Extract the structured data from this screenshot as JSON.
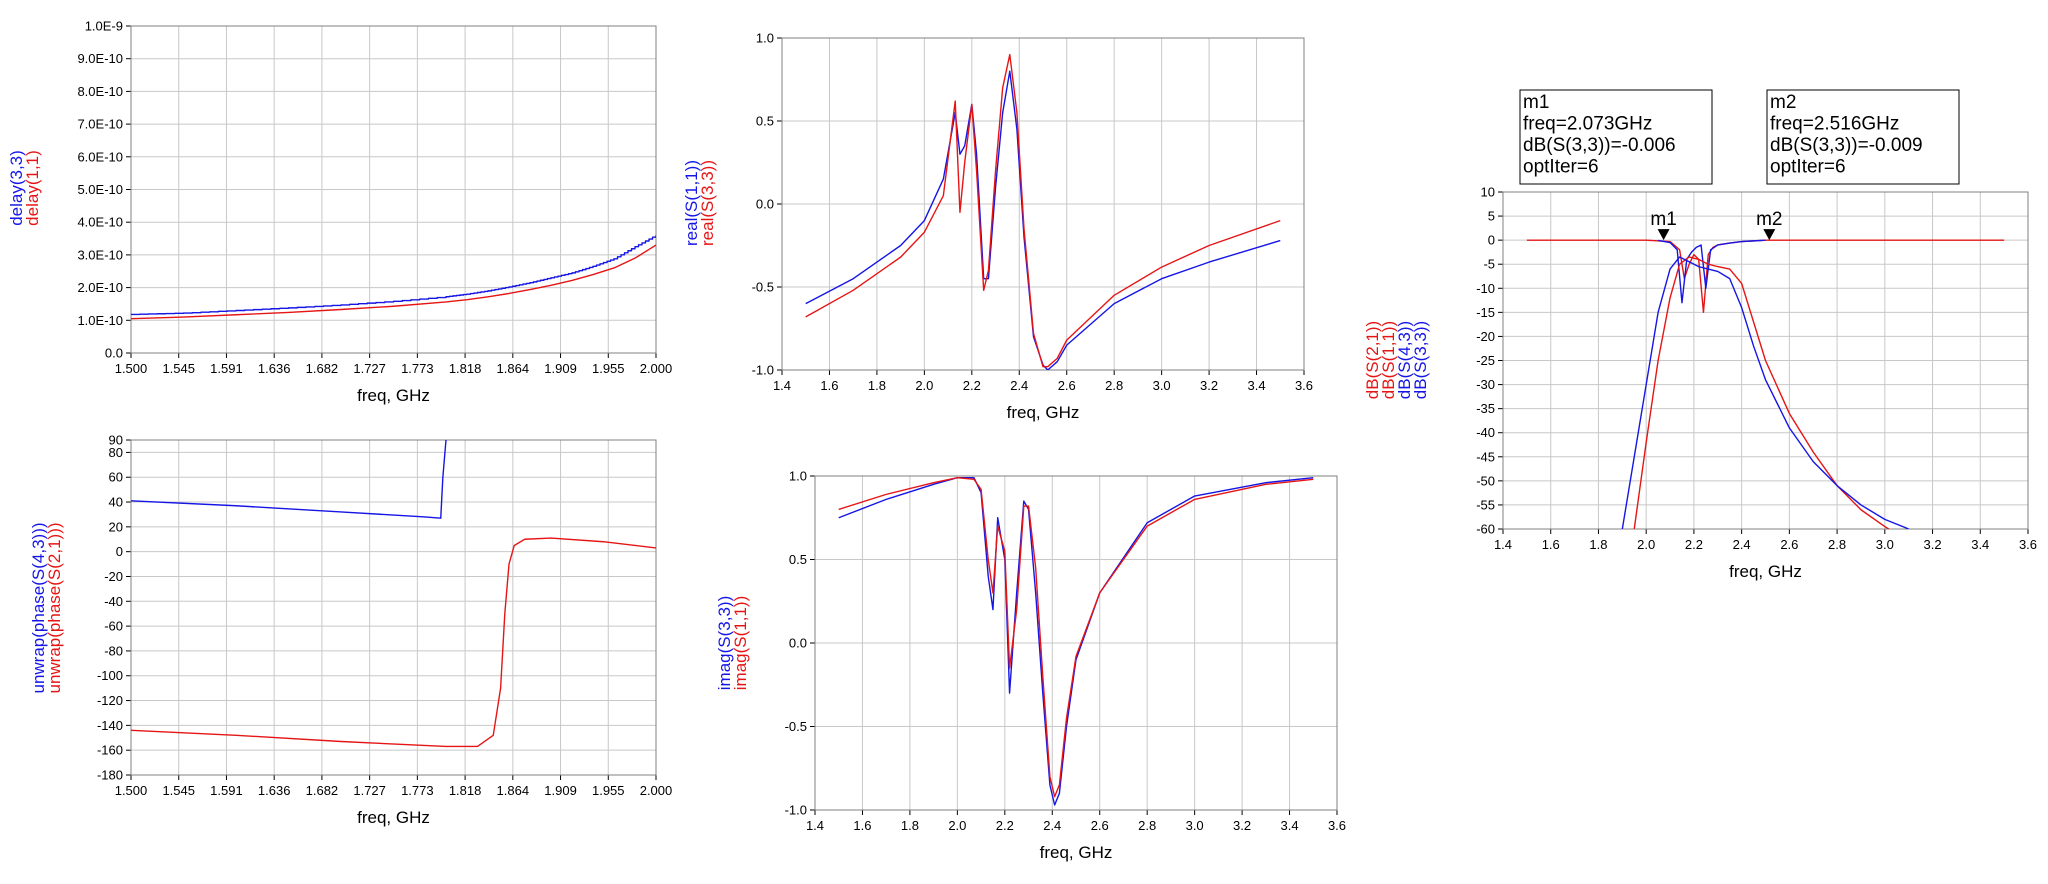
{
  "colors": {
    "blue": "#1515e6",
    "red": "#e61515",
    "grid": "#c8c8c8",
    "frame": "#808080"
  },
  "chart_data": [
    {
      "id": "delay",
      "type": "line",
      "x_label": "freq, GHz",
      "y_labels": [
        {
          "text": "delay(3,3)",
          "color": "blue"
        },
        {
          "text": "delay(1,1)",
          "color": "red"
        }
      ],
      "xlim": [
        1.5,
        2.0
      ],
      "ylim": [
        0,
        1e-09
      ],
      "x_ticks": [
        "1.500",
        "1.545",
        "1.591",
        "1.636",
        "1.682",
        "1.727",
        "1.773",
        "1.818",
        "1.864",
        "1.909",
        "1.955",
        "2.000"
      ],
      "y_ticks": [
        "0.0",
        "1.0E-10",
        "2.0E-10",
        "3.0E-10",
        "4.0E-10",
        "5.0E-10",
        "6.0E-10",
        "7.0E-10",
        "8.0E-10",
        "9.0E-10",
        "1.0E-9"
      ],
      "series": [
        {
          "name": "delay(3,3)",
          "color": "blue",
          "step": true,
          "x": [
            1.5,
            1.55,
            1.6,
            1.65,
            1.7,
            1.75,
            1.8,
            1.82,
            1.84,
            1.86,
            1.88,
            1.9,
            1.92,
            1.94,
            1.96,
            1.98,
            2.0
          ],
          "y": [
            1.18e-10,
            1.22e-10,
            1.3e-10,
            1.38e-10,
            1.47e-10,
            1.58e-10,
            1.72e-10,
            1.8e-10,
            1.9e-10,
            2.02e-10,
            2.15e-10,
            2.3e-10,
            2.45e-10,
            2.65e-10,
            2.88e-10,
            3.25e-10,
            3.6e-10
          ]
        },
        {
          "name": "delay(1,1)",
          "color": "red",
          "x": [
            1.5,
            1.55,
            1.6,
            1.65,
            1.7,
            1.75,
            1.8,
            1.82,
            1.84,
            1.86,
            1.88,
            1.9,
            1.92,
            1.94,
            1.96,
            1.98,
            2.0
          ],
          "y": [
            1.05e-10,
            1.1e-10,
            1.17e-10,
            1.24e-10,
            1.33e-10,
            1.43e-10,
            1.56e-10,
            1.63e-10,
            1.72e-10,
            1.82e-10,
            1.94e-10,
            2.07e-10,
            2.22e-10,
            2.4e-10,
            2.6e-10,
            2.9e-10,
            3.3e-10
          ]
        }
      ]
    },
    {
      "id": "phase",
      "type": "line",
      "x_label": "freq, GHz",
      "y_labels": [
        {
          "text": "unwrap(phase(S(4,3)))",
          "color": "blue"
        },
        {
          "text": "unwrap(phase(S(2,1)))",
          "color": "red"
        }
      ],
      "xlim": [
        1.5,
        2.0
      ],
      "ylim": [
        -180,
        90
      ],
      "x_ticks": [
        "1.500",
        "1.545",
        "1.591",
        "1.636",
        "1.682",
        "1.727",
        "1.773",
        "1.818",
        "1.864",
        "1.909",
        "1.955",
        "2.000"
      ],
      "y_ticks": [
        "-180",
        "-160",
        "-140",
        "-120",
        "-100",
        "-80",
        "-60",
        "-40",
        "-20",
        "0",
        "20",
        "40",
        "60",
        "80",
        "90"
      ],
      "series": [
        {
          "name": "unwrap(phase(S(4,3)))",
          "color": "blue",
          "x": [
            1.5,
            1.6,
            1.7,
            1.78,
            1.795,
            1.797,
            1.8
          ],
          "y": [
            41,
            37,
            32,
            28,
            27,
            60,
            90
          ]
        },
        {
          "name": "unwrap(phase(S(2,1)))",
          "color": "red",
          "x": [
            1.5,
            1.6,
            1.7,
            1.8,
            1.83,
            1.845,
            1.852,
            1.856,
            1.86,
            1.865,
            1.875,
            1.9,
            1.95,
            2.0
          ],
          "y": [
            -144,
            -148,
            -153,
            -157,
            -157,
            -148,
            -110,
            -50,
            -10,
            5,
            10,
            11,
            8,
            3
          ]
        }
      ]
    },
    {
      "id": "real",
      "type": "line",
      "x_label": "freq, GHz",
      "y_labels": [
        {
          "text": "real(S(1,1))",
          "color": "blue"
        },
        {
          "text": "real(S(3,3))",
          "color": "red"
        }
      ],
      "xlim": [
        1.4,
        3.6
      ],
      "ylim": [
        -1.0,
        1.0
      ],
      "x_ticks": [
        "1.4",
        "1.6",
        "1.8",
        "2.0",
        "2.2",
        "2.4",
        "2.6",
        "2.8",
        "3.0",
        "3.2",
        "3.4",
        "3.6"
      ],
      "y_ticks": [
        "-1.0",
        "-0.5",
        "0.0",
        "0.5",
        "1.0"
      ],
      "series": [
        {
          "name": "real(S(1,1))",
          "color": "blue",
          "x": [
            1.5,
            1.7,
            1.9,
            2.0,
            2.08,
            2.13,
            2.15,
            2.17,
            2.2,
            2.22,
            2.25,
            2.27,
            2.3,
            2.33,
            2.36,
            2.39,
            2.42,
            2.46,
            2.5,
            2.52,
            2.56,
            2.6,
            2.8,
            3.0,
            3.2,
            3.5
          ],
          "y": [
            -0.6,
            -0.45,
            -0.25,
            -0.1,
            0.15,
            0.55,
            0.3,
            0.35,
            0.6,
            0.3,
            -0.45,
            -0.45,
            0.1,
            0.55,
            0.8,
            0.45,
            -0.2,
            -0.8,
            -0.97,
            -1.0,
            -0.95,
            -0.85,
            -0.6,
            -0.45,
            -0.35,
            -0.22
          ]
        },
        {
          "name": "real(S(3,3))",
          "color": "red",
          "x": [
            1.5,
            1.7,
            1.9,
            2.0,
            2.08,
            2.13,
            2.15,
            2.17,
            2.2,
            2.22,
            2.25,
            2.27,
            2.3,
            2.33,
            2.36,
            2.39,
            2.42,
            2.46,
            2.5,
            2.52,
            2.56,
            2.6,
            2.8,
            3.0,
            3.2,
            3.5
          ],
          "y": [
            -0.68,
            -0.52,
            -0.32,
            -0.17,
            0.05,
            0.62,
            -0.05,
            0.25,
            0.6,
            0.2,
            -0.52,
            -0.4,
            0.2,
            0.7,
            0.9,
            0.55,
            -0.15,
            -0.78,
            -0.98,
            -0.98,
            -0.93,
            -0.82,
            -0.55,
            -0.38,
            -0.25,
            -0.1
          ]
        }
      ]
    },
    {
      "id": "imag",
      "type": "line",
      "x_label": "freq, GHz",
      "y_labels": [
        {
          "text": "imag(S(3,3))",
          "color": "blue"
        },
        {
          "text": "imag(S(1,1))",
          "color": "red"
        }
      ],
      "xlim": [
        1.4,
        3.6
      ],
      "ylim": [
        -1.0,
        1.0
      ],
      "x_ticks": [
        "1.4",
        "1.6",
        "1.8",
        "2.0",
        "2.2",
        "2.4",
        "2.6",
        "2.8",
        "3.0",
        "3.2",
        "3.4",
        "3.6"
      ],
      "y_ticks": [
        "-1.0",
        "-0.5",
        "0.0",
        "0.5",
        "1.0"
      ],
      "series": [
        {
          "name": "imag(S(3,3))",
          "color": "blue",
          "x": [
            1.5,
            1.7,
            1.9,
            2.0,
            2.07,
            2.1,
            2.13,
            2.15,
            2.17,
            2.2,
            2.22,
            2.25,
            2.28,
            2.3,
            2.33,
            2.36,
            2.39,
            2.41,
            2.43,
            2.46,
            2.5,
            2.6,
            2.8,
            3.0,
            3.3,
            3.5
          ],
          "y": [
            0.75,
            0.86,
            0.95,
            0.99,
            0.99,
            0.9,
            0.4,
            0.2,
            0.75,
            0.5,
            -0.3,
            0.3,
            0.85,
            0.8,
            0.3,
            -0.3,
            -0.85,
            -0.97,
            -0.9,
            -0.5,
            -0.1,
            0.3,
            0.72,
            0.88,
            0.96,
            0.99
          ]
        },
        {
          "name": "imag(S(1,1))",
          "color": "red",
          "x": [
            1.5,
            1.7,
            1.9,
            2.0,
            2.07,
            2.1,
            2.13,
            2.15,
            2.17,
            2.2,
            2.22,
            2.25,
            2.28,
            2.3,
            2.33,
            2.36,
            2.39,
            2.41,
            2.43,
            2.46,
            2.5,
            2.6,
            2.8,
            3.0,
            3.3,
            3.5
          ],
          "y": [
            0.8,
            0.89,
            0.96,
            0.99,
            0.98,
            0.92,
            0.5,
            0.3,
            0.7,
            0.55,
            -0.15,
            0.2,
            0.82,
            0.82,
            0.45,
            -0.2,
            -0.8,
            -0.92,
            -0.85,
            -0.45,
            -0.08,
            0.3,
            0.7,
            0.86,
            0.95,
            0.98
          ]
        }
      ]
    },
    {
      "id": "db",
      "type": "line",
      "x_label": "freq, GHz",
      "y_labels": [
        {
          "text": "dB(S(2,1))",
          "color": "red"
        },
        {
          "text": "dB(S(1,1))",
          "color": "red"
        },
        {
          "text": "dB(S(4,3))",
          "color": "blue"
        },
        {
          "text": "dB(S(3,3))",
          "color": "blue"
        }
      ],
      "xlim": [
        1.4,
        3.6
      ],
      "ylim": [
        -60,
        10
      ],
      "x_ticks": [
        "1.4",
        "1.6",
        "1.8",
        "2.0",
        "2.2",
        "2.4",
        "2.6",
        "2.8",
        "3.0",
        "3.2",
        "3.4",
        "3.6"
      ],
      "y_ticks": [
        "-60",
        "-55",
        "-50",
        "-45",
        "-40",
        "-35",
        "-30",
        "-25",
        "-20",
        "-15",
        "-10",
        "-5",
        "0",
        "5",
        "10"
      ],
      "series": [
        {
          "name": "dB(S(1,1))",
          "color": "red",
          "x": [
            1.5,
            2.0,
            2.1,
            2.14,
            2.16,
            2.18,
            2.2,
            2.22,
            2.24,
            2.26,
            2.28,
            2.3,
            2.35,
            2.4,
            2.45,
            2.5,
            3.0,
            3.5
          ],
          "y": [
            0,
            0,
            -0.3,
            -2,
            -8,
            -5,
            -3,
            -4,
            -15,
            -3,
            -1.5,
            -1,
            -0.6,
            -0.3,
            -0.15,
            0,
            0,
            0
          ]
        },
        {
          "name": "dB(S(3,3))",
          "color": "blue",
          "x": [
            2.05,
            2.1,
            2.13,
            2.15,
            2.17,
            2.19,
            2.21,
            2.23,
            2.25,
            2.27,
            2.3,
            2.35,
            2.4,
            2.45,
            2.5
          ],
          "y": [
            -0.05,
            -0.5,
            -2,
            -13,
            -4,
            -2.5,
            -1.5,
            -1,
            -10,
            -2,
            -1,
            -0.6,
            -0.3,
            -0.15,
            0
          ]
        },
        {
          "name": "dB(S(2,1))",
          "color": "red",
          "x": [
            1.95,
            2.0,
            2.05,
            2.1,
            2.14,
            2.18,
            2.22,
            2.26,
            2.3,
            2.35,
            2.4,
            2.45,
            2.5,
            2.6,
            2.7,
            2.8,
            2.9,
            3.0,
            3.05
          ],
          "y": [
            -60,
            -42,
            -25,
            -12,
            -5,
            -3.5,
            -4,
            -5,
            -5.5,
            -6,
            -9,
            -17,
            -25,
            -36,
            -44,
            -51,
            -56,
            -59.5,
            -61
          ]
        },
        {
          "name": "dB(S(4,3))",
          "color": "blue",
          "x": [
            1.9,
            1.96,
            2.0,
            2.05,
            2.1,
            2.14,
            2.18,
            2.22,
            2.26,
            2.3,
            2.35,
            2.4,
            2.45,
            2.5,
            2.6,
            2.7,
            2.8,
            2.9,
            3.0,
            3.1
          ],
          "y": [
            -60,
            -42,
            -30,
            -15,
            -6,
            -3.5,
            -4.5,
            -5.5,
            -6,
            -6.5,
            -8,
            -14,
            -22,
            -29,
            -39,
            -46,
            -51,
            -55,
            -58,
            -60
          ]
        }
      ],
      "markers": [
        {
          "name": "m1",
          "x": 2.073,
          "y": -0.006,
          "lines": [
            "m1",
            "freq=2.073GHz",
            "dB(S(3,3))=-0.006",
            "optIter=6"
          ]
        },
        {
          "name": "m2",
          "x": 2.516,
          "y": -0.009,
          "lines": [
            "m2",
            "freq=2.516GHz",
            "dB(S(3,3))=-0.009",
            "optIter=6"
          ]
        }
      ]
    }
  ]
}
